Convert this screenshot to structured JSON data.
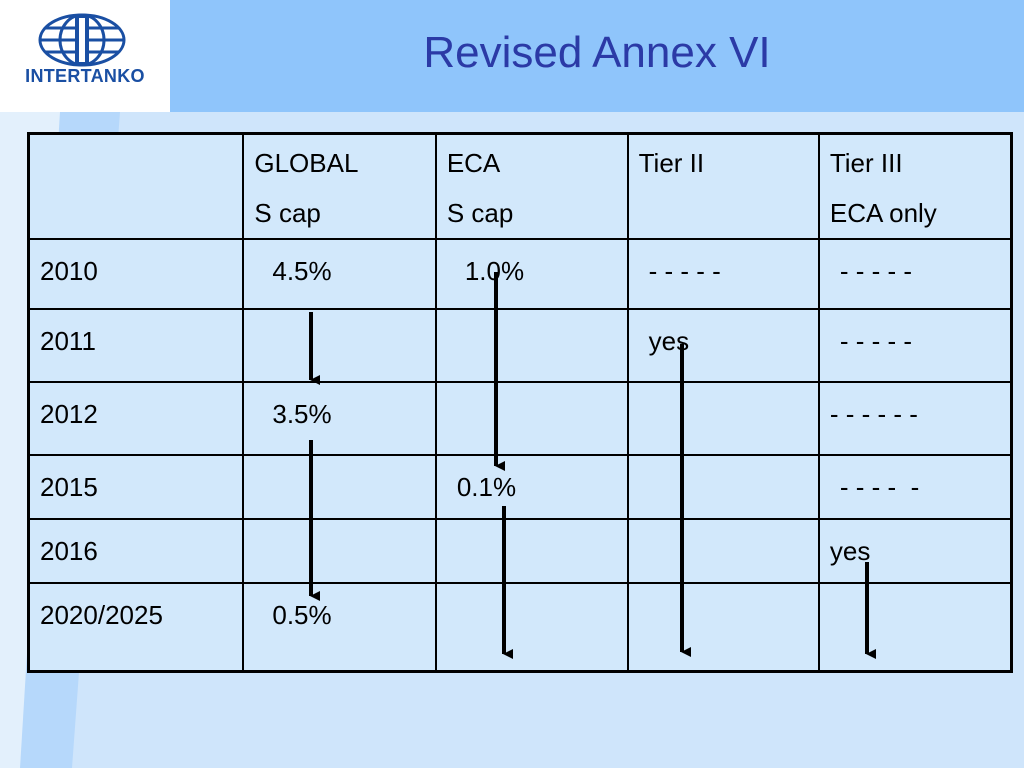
{
  "logo": {
    "text": "INTERTANKO"
  },
  "title": "Revised Annex VI",
  "table": {
    "header": {
      "col0": "",
      "col1": [
        "GLOBAL",
        "S cap"
      ],
      "col2": [
        "ECA",
        "S cap"
      ],
      "col3": [
        "Tier II"
      ],
      "col4": [
        "Tier III",
        "ECA only"
      ]
    },
    "rows": [
      {
        "year": "2010",
        "global": "4.5%",
        "eca": "1.0%",
        "tier2": "- - - - -",
        "tier3": "- - - - -"
      },
      {
        "year": "2011",
        "global": "",
        "eca": "",
        "tier2": "yes",
        "tier3": "- - - - -"
      },
      {
        "year": "2012",
        "global": "3.5%",
        "eca": "",
        "tier2": "",
        "tier3": "- - - - - -"
      },
      {
        "year": "2015",
        "global": "",
        "eca": "0.1%",
        "tier2": "",
        "tier3": "- - - -  -"
      },
      {
        "year": "2016",
        "global": "",
        "eca": "",
        "tier2": "",
        "tier3": "yes"
      },
      {
        "year": "2020/2025",
        "global": "0.5%",
        "eca": "",
        "tier2": "",
        "tier3": ""
      }
    ]
  },
  "colors": {
    "header_band": "#8fc5fb",
    "background": "#cfe5fb",
    "title": "#2b3aa6",
    "logo": "#1a4fa3"
  }
}
